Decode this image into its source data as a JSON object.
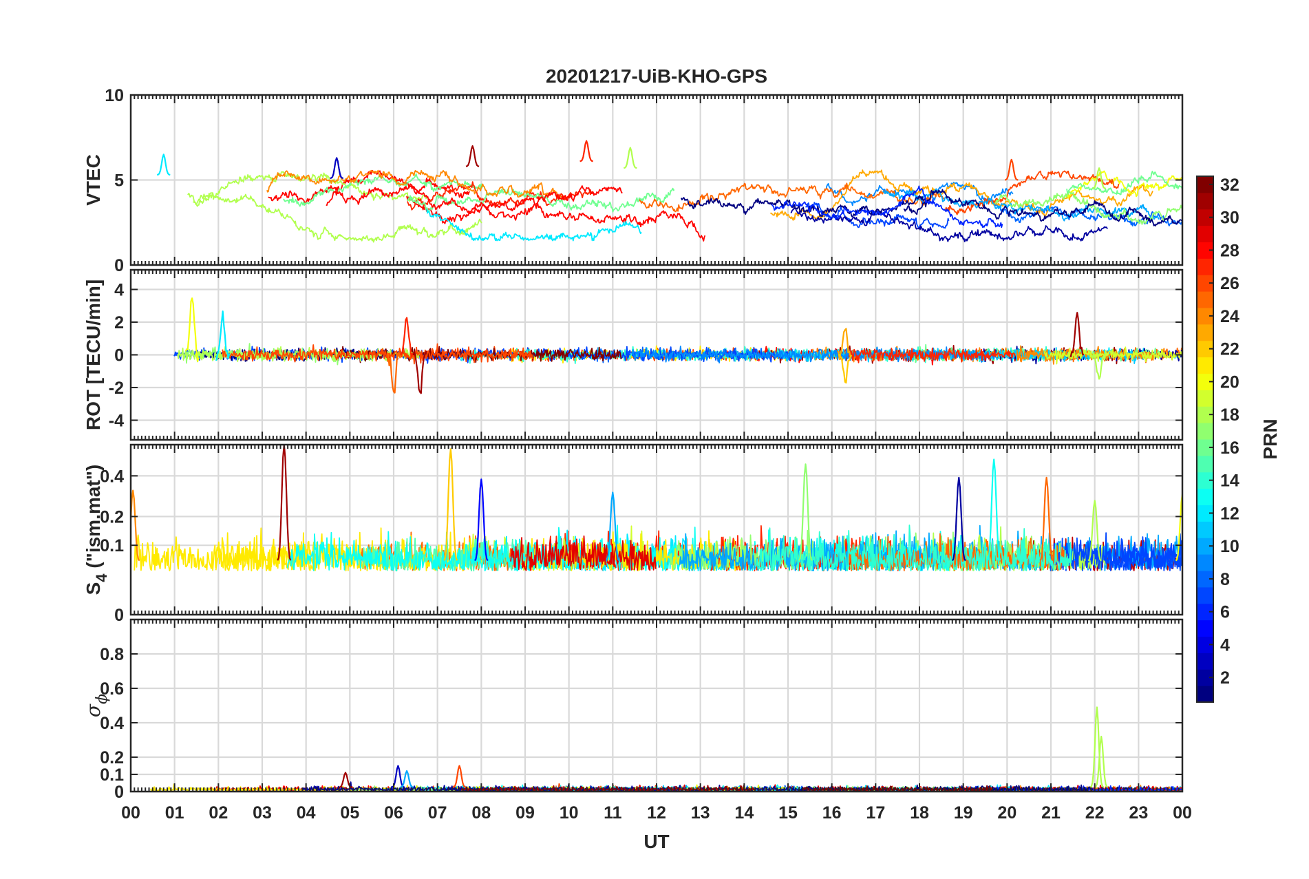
{
  "chart_data": {
    "type": "line",
    "title": "20201217-UiB-KHO-GPS",
    "xlabel": "UT",
    "x_range_hours": [
      0,
      24
    ],
    "x_tick_labels": [
      "00",
      "01",
      "02",
      "03",
      "04",
      "05",
      "06",
      "07",
      "08",
      "09",
      "10",
      "11",
      "12",
      "13",
      "14",
      "15",
      "16",
      "17",
      "18",
      "19",
      "20",
      "21",
      "22",
      "23",
      "00"
    ],
    "grid": true,
    "colorbar": {
      "label": "PRN",
      "range": [
        1,
        32
      ],
      "tick_labels": [
        "2",
        "4",
        "6",
        "8",
        "10",
        "12",
        "14",
        "16",
        "18",
        "20",
        "22",
        "24",
        "26",
        "28",
        "30",
        "32"
      ],
      "colormap": "jet",
      "levels": 32
    },
    "panels": [
      {
        "id": "vtec",
        "ylabel": "VTEC",
        "ylim": [
          0,
          10
        ],
        "y_ticks": [
          0,
          5,
          10
        ],
        "y_tick_labels": [
          "0",
          "5",
          "10"
        ],
        "typical_range": [
          1,
          7
        ],
        "peaks": [
          {
            "hour": 0.75,
            "value": 6.5,
            "prn": 12
          },
          {
            "hour": 4.7,
            "value": 6.3,
            "prn": 3
          },
          {
            "hour": 7.8,
            "value": 7.0,
            "prn": 31
          },
          {
            "hour": 10.4,
            "value": 7.3,
            "prn": 27
          },
          {
            "hour": 11.4,
            "value": 6.9,
            "prn": 18
          },
          {
            "hour": 20.1,
            "value": 6.2,
            "prn": 26
          },
          {
            "hour": 22.1,
            "value": 5.7,
            "prn": 18
          }
        ]
      },
      {
        "id": "rot",
        "ylabel": "ROT [TECU/min]",
        "ylim": [
          -5.2,
          5.2
        ],
        "y_ticks": [
          -4,
          -2,
          0,
          2,
          4
        ],
        "y_tick_labels": [
          "-4",
          "-2",
          "0",
          "2",
          "4"
        ],
        "typical_range": [
          -0.5,
          0.5
        ],
        "spikes": [
          {
            "hour": 1.4,
            "value": 3.8,
            "prn": 20
          },
          {
            "hour": 2.1,
            "value": 2.4,
            "prn": 12
          },
          {
            "hour": 6.0,
            "value": -2.5,
            "prn": 25
          },
          {
            "hour": 6.3,
            "value": 2.1,
            "prn": 27
          },
          {
            "hour": 6.6,
            "value": -2.4,
            "prn": 31
          },
          {
            "hour": 21.6,
            "value": 2.6,
            "prn": 31
          },
          {
            "hour": 16.3,
            "value": 1.7,
            "prn": 23
          },
          {
            "hour": 16.3,
            "value": -1.6,
            "prn": 22
          },
          {
            "hour": 22.1,
            "value": -1.4,
            "prn": 18
          }
        ]
      },
      {
        "id": "s4",
        "ylabel": "S4 (\"ism.mat\")",
        "ylabel_parts": {
          "symbol": "S",
          "subscript": "4",
          "rest": " (\"ism.mat\")"
        },
        "ylim": [
          0,
          0.6
        ],
        "y_ticks": [
          0,
          0.1,
          0.2,
          0.4
        ],
        "y_tick_labels": [
          "0",
          "0.1",
          "0.2",
          "0.4"
        ],
        "scale_note": "sqrt",
        "typical_range": [
          0.04,
          0.12
        ],
        "spikes": [
          {
            "hour": 0.05,
            "value": 0.32,
            "prn": 24
          },
          {
            "hour": 3.5,
            "value": 0.6,
            "prn": 31
          },
          {
            "hour": 7.3,
            "value": 0.57,
            "prn": 22
          },
          {
            "hour": 8.0,
            "value": 0.38,
            "prn": 5
          },
          {
            "hour": 11.0,
            "value": 0.31,
            "prn": 10
          },
          {
            "hour": 15.4,
            "value": 0.47,
            "prn": 17
          },
          {
            "hour": 18.9,
            "value": 0.39,
            "prn": 2
          },
          {
            "hour": 19.7,
            "value": 0.5,
            "prn": 13
          },
          {
            "hour": 20.9,
            "value": 0.39,
            "prn": 25
          },
          {
            "hour": 22.0,
            "value": 0.27,
            "prn": 18
          },
          {
            "hour": 24.0,
            "value": 0.3,
            "prn": 20
          }
        ]
      },
      {
        "id": "sigma_phi",
        "ylabel": "σ ϕ",
        "ylabel_parts": {
          "symbol": "σ",
          "subscript": "ϕ"
        },
        "ylim": [
          0,
          1
        ],
        "y_ticks": [
          0,
          0.1,
          0.2,
          0.4,
          0.6,
          0.8
        ],
        "y_tick_labels": [
          "0",
          "0.1",
          "0.2",
          "0.4",
          "0.6",
          "0.8"
        ],
        "typical_range": [
          0.005,
          0.04
        ],
        "spikes": [
          {
            "hour": 4.9,
            "value": 0.11,
            "prn": 31
          },
          {
            "hour": 6.1,
            "value": 0.15,
            "prn": 3
          },
          {
            "hour": 6.3,
            "value": 0.12,
            "prn": 10
          },
          {
            "hour": 7.5,
            "value": 0.15,
            "prn": 26
          },
          {
            "hour": 22.05,
            "value": 0.49,
            "prn": 18
          },
          {
            "hour": 22.15,
            "value": 0.32,
            "prn": 18
          }
        ]
      }
    ]
  }
}
